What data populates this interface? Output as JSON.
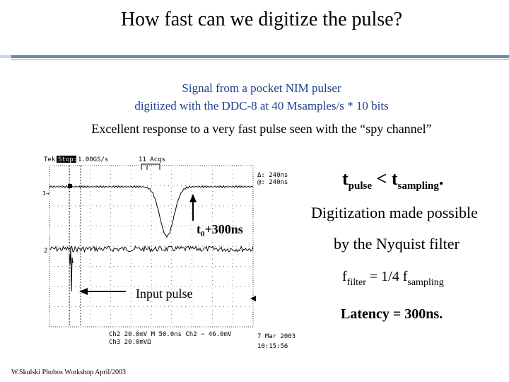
{
  "title": "How fast can we digitize the pulse?",
  "caption_line1": "Signal from a pocket NIM pulser",
  "caption_line2": "digitized with the DDC-8 at 40 Msamples/s * 10 bits",
  "subtitle": "Excellent response to a very fast pulse seen with the “spy channel”",
  "scope": {
    "brand": "Tek",
    "mode": "Stop:",
    "rate": "1.00GS/s",
    "acqs": "11 Acqs",
    "cursor_a": "Δ: 240ns",
    "cursor_b": "@: 240ns",
    "ch1_marker": "1→",
    "ch2_marker": "2",
    "annotation_t0": "t",
    "annotation_t0_sub": "0",
    "annotation_t0_rest": "+300ns",
    "annotation_input": "Input pulse",
    "status_line1": "Ch2  20.0mV   M 50.0ns  Ch2  − 46.0mV",
    "status_line2": "Ch3  20.0mVΩ",
    "date": "7 Mar 2003",
    "time": "10:15:56"
  },
  "relation": {
    "t": "t",
    "pulse_sub": "pulse",
    "op": " < ",
    "t2": "t",
    "sampling_sub": "sampling",
    "end": "."
  },
  "digitization_text": "Digitization made possible",
  "nyquist_text": "by the Nyquist filter",
  "filter_eq": {
    "f": "f",
    "filter_sub": "filter",
    "mid": " = 1/4 f",
    "sampling_sub": "sampling"
  },
  "latency": "Latency = 300ns.",
  "footer": "W.Skulski  Phobos Workshop April/2003"
}
